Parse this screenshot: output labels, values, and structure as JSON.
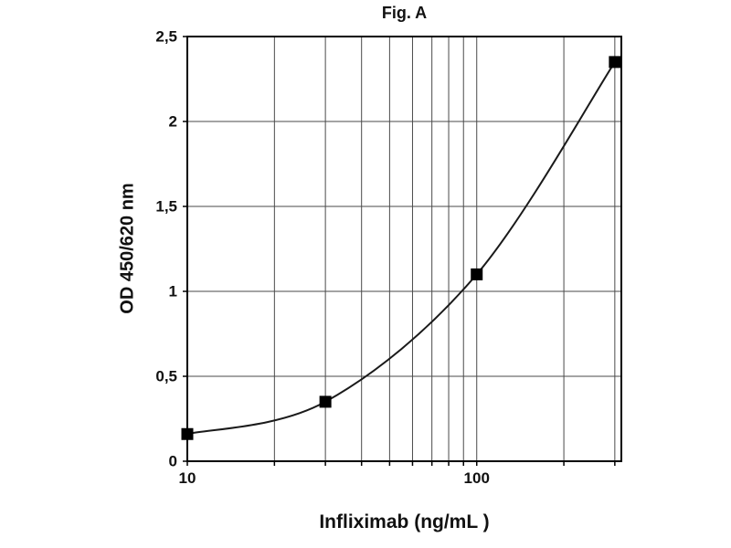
{
  "page": {
    "background": "#ffffff"
  },
  "chart_data": {
    "type": "line",
    "title": "Fig. A",
    "xlabel": "Infliximab (ng/mL )",
    "ylabel": "OD 450/620 nm",
    "x_scale": "log",
    "x": [
      10,
      30,
      100,
      300
    ],
    "y": [
      0.16,
      0.35,
      1.1,
      2.35
    ],
    "xlim": [
      10,
      316
    ],
    "ylim": [
      0,
      2.5
    ],
    "x_ticks": [
      {
        "value": 10,
        "label": "10"
      },
      {
        "value": 100,
        "label": "100"
      }
    ],
    "y_ticks": [
      {
        "value": 0,
        "label": "0"
      },
      {
        "value": 0.5,
        "label": "0,5"
      },
      {
        "value": 1,
        "label": "1"
      },
      {
        "value": 1.5,
        "label": "1,5"
      },
      {
        "value": 2,
        "label": "2"
      },
      {
        "value": 2.5,
        "label": "2,5"
      }
    ],
    "x_gridlines": [
      10,
      20,
      30,
      40,
      50,
      60,
      70,
      80,
      90,
      100,
      200,
      300
    ],
    "y_gridlines": [
      0,
      0.5,
      1,
      1.5,
      2,
      2.5
    ],
    "grid": true,
    "legend": "none",
    "marker": "square",
    "marker_size": 13,
    "colors": {
      "line": "#1a1a1a",
      "marker": "#000000",
      "grid": "#4a4a4a",
      "border": "#000000",
      "text": "#111111"
    }
  }
}
